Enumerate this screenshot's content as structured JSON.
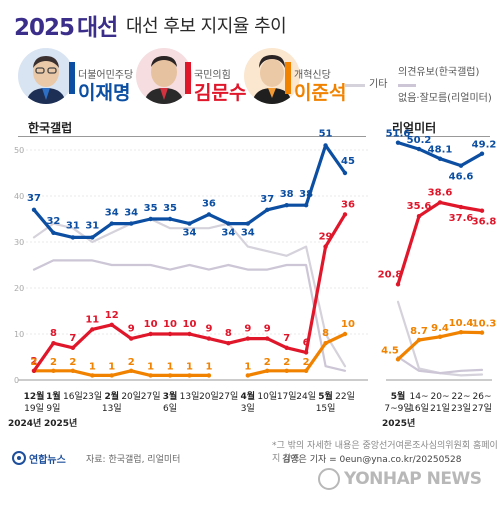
{
  "header": {
    "year": "2025",
    "word": "대선",
    "subtitle": "대선 후보 지지율 추이"
  },
  "candidates": [
    {
      "party": "더불어민주당",
      "name": "이재명",
      "color": "#0b4ea2"
    },
    {
      "party": "국민의힘",
      "name": "김문수",
      "color": "#e0162b"
    },
    {
      "party": "개혁신당",
      "name": "이준석",
      "color": "#f08200"
    }
  ],
  "legend": {
    "other_label": "기타",
    "undecided_label_1": "의견유보(한국갤럽)",
    "undecided_label_2": "없음·잘모름(리얼미터)"
  },
  "sources": {
    "left": "한국갤럽",
    "right": "리얼미터"
  },
  "footer": {
    "note": "*그 밖의 자세한 내용은 중앙선거여론조사심의위원회 홈페이지 참조",
    "logo": "연합뉴스",
    "source": "자료: 한국갤럽, 리얼미터",
    "credit": "김영은 기자 = 0eun@yna.co.kr/20250528",
    "watermark": "YONHAP NEWS"
  },
  "chart_data": [
    {
      "type": "line",
      "name": "한국갤럽",
      "x": [
        "12월 19일",
        "1월 9일",
        "16일",
        "23일",
        "2월 13일",
        "20일",
        "27일",
        "3월 6일",
        "13일",
        "20일",
        "27일",
        "4월 3일",
        "10일",
        "17일",
        "24일",
        "5월 15일",
        "22일"
      ],
      "x_top": [
        "12월",
        "1월",
        "16일",
        "23일",
        "2월",
        "20일",
        "27일",
        "3월",
        "13일",
        "20일",
        "27일",
        "4월",
        "10일",
        "17일",
        "24일",
        "5월",
        "22일"
      ],
      "x_bottom": [
        "19일",
        "9일",
        "",
        "",
        "13일",
        "",
        "",
        "6일",
        "",
        "",
        "",
        "3일",
        "",
        "",
        "",
        "15일",
        ""
      ],
      "year_labels": [
        "2024년",
        "2025년"
      ],
      "ylim": [
        0,
        50
      ],
      "yticks": [
        0,
        10,
        20,
        30,
        40,
        50
      ],
      "series": [
        {
          "name": "이재명",
          "color": "#0b4ea2",
          "values": [
            37,
            32,
            31,
            31,
            34,
            34,
            35,
            35,
            34,
            36,
            34,
            34,
            37,
            38,
            38,
            51,
            45
          ],
          "labels": true
        },
        {
          "name": "김문수",
          "color": "#e0162b",
          "values": [
            2,
            8,
            7,
            11,
            12,
            9,
            10,
            10,
            10,
            9,
            8,
            9,
            9,
            7,
            6,
            29,
            36
          ],
          "labels": true
        },
        {
          "name": "이준석",
          "color": "#f08200",
          "values": [
            2,
            2,
            2,
            1,
            1,
            2,
            1,
            1,
            1,
            1,
            null,
            1,
            2,
            2,
            2,
            8,
            10
          ],
          "labels": true
        },
        {
          "name": "기타",
          "color": "#d6d2dc",
          "values": [
            31,
            34,
            33,
            30,
            32,
            34,
            35,
            33,
            33,
            33,
            34,
            29,
            28,
            27,
            29,
            10,
            3
          ],
          "labels": false
        },
        {
          "name": "의견유보(한국갤럽)",
          "color": "#ccc6d6",
          "values": [
            24,
            26,
            26,
            26,
            25,
            25,
            25,
            24,
            25,
            24,
            25,
            24,
            24,
            25,
            25,
            3,
            2
          ],
          "labels": false
        }
      ]
    },
    {
      "type": "line",
      "name": "리얼미터",
      "x": [
        "5월 7~9일",
        "14~16일",
        "20~21일",
        "22~23일",
        "26~27일"
      ],
      "x_top": [
        "5월",
        "14~",
        "20~",
        "22~",
        "26~"
      ],
      "x_bottom": [
        "7~9일",
        "16일",
        "21일",
        "23일",
        "27일"
      ],
      "year_labels": [
        "2025년"
      ],
      "ylim": [
        0,
        50
      ],
      "series": [
        {
          "name": "이재명",
          "color": "#0b4ea2",
          "values": [
            51.6,
            50.2,
            48.1,
            46.6,
            49.2
          ],
          "labels": true
        },
        {
          "name": "김문수",
          "color": "#e0162b",
          "values": [
            20.8,
            35.6,
            38.6,
            37.6,
            36.8
          ],
          "labels": true
        },
        {
          "name": "이준석",
          "color": "#f08200",
          "values": [
            4.5,
            8.7,
            9.4,
            10.4,
            10.3
          ],
          "labels": true
        },
        {
          "name": "기타",
          "color": "#d6d2dc",
          "values": [
            17,
            2.5,
            1.5,
            1,
            1.2
          ],
          "labels": false
        },
        {
          "name": "없음·잘모름(리얼미터)",
          "color": "#ccc6d6",
          "values": [
            5,
            2,
            1.5,
            2,
            2.2
          ],
          "labels": false
        }
      ]
    }
  ]
}
